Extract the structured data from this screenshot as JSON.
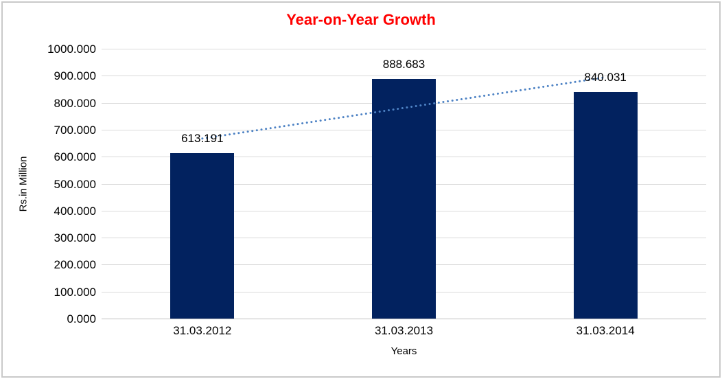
{
  "chart_data": {
    "type": "bar",
    "title": "Year-on-Year Growth",
    "title_color": "#ff0000",
    "categories": [
      "31.03.2012",
      "31.03.2013",
      "31.03.2014"
    ],
    "values": [
      613.191,
      888.683,
      840.031
    ],
    "data_labels": [
      "613.191",
      "888.683",
      "840.031"
    ],
    "xlabel": "Years",
    "ylabel": "Rs.in Million",
    "ylim": [
      0,
      1000
    ],
    "y_tick_step": 100,
    "y_tick_labels": [
      "0.000",
      "100.000",
      "200.000",
      "300.000",
      "400.000",
      "500.000",
      "600.000",
      "700.000",
      "800.000",
      "900.000",
      "1000.000"
    ],
    "grid": true,
    "legend_position": "none",
    "bar_color": "#02225f",
    "gridline_color": "#d9d9d9",
    "trendline": {
      "type": "linear",
      "style": "dotted",
      "color": "#4d82c4",
      "fitted_endpoints": [
        667.215,
        894.055
      ]
    }
  }
}
